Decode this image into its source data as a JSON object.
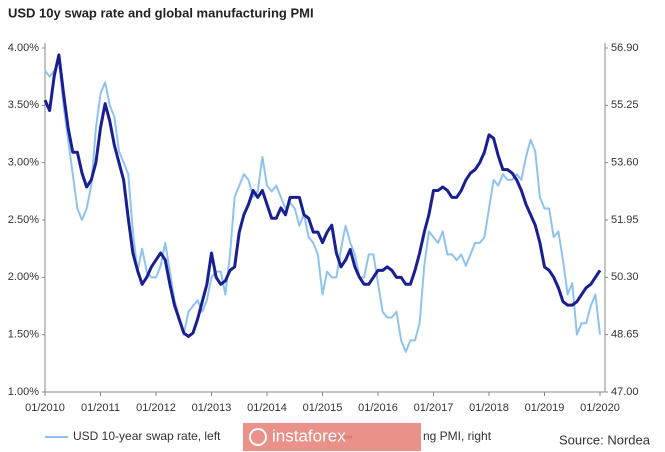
{
  "chart_data": {
    "type": "line",
    "title": "USD 10y swap rate and global manufacturing PMI",
    "source": "Source: Nordea",
    "watermark": "instaforex",
    "x": [
      "2010-01",
      "2010-02",
      "2010-03",
      "2010-04",
      "2010-05",
      "2010-06",
      "2010-07",
      "2010-08",
      "2010-09",
      "2010-10",
      "2010-11",
      "2010-12",
      "2011-01",
      "2011-02",
      "2011-03",
      "2011-04",
      "2011-05",
      "2011-06",
      "2011-07",
      "2011-08",
      "2011-09",
      "2011-10",
      "2011-11",
      "2011-12",
      "2012-01",
      "2012-02",
      "2012-03",
      "2012-04",
      "2012-05",
      "2012-06",
      "2012-07",
      "2012-08",
      "2012-09",
      "2012-10",
      "2012-11",
      "2012-12",
      "2013-01",
      "2013-02",
      "2013-03",
      "2013-04",
      "2013-05",
      "2013-06",
      "2013-07",
      "2013-08",
      "2013-09",
      "2013-10",
      "2013-11",
      "2013-12",
      "2014-01",
      "2014-02",
      "2014-03",
      "2014-04",
      "2014-05",
      "2014-06",
      "2014-07",
      "2014-08",
      "2014-09",
      "2014-10",
      "2014-11",
      "2014-12",
      "2015-01",
      "2015-02",
      "2015-03",
      "2015-04",
      "2015-05",
      "2015-06",
      "2015-07",
      "2015-08",
      "2015-09",
      "2015-10",
      "2015-11",
      "2015-12",
      "2016-01",
      "2016-02",
      "2016-03",
      "2016-04",
      "2016-05",
      "2016-06",
      "2016-07",
      "2016-08",
      "2016-09",
      "2016-10",
      "2016-11",
      "2016-12",
      "2017-01",
      "2017-02",
      "2017-03",
      "2017-04",
      "2017-05",
      "2017-06",
      "2017-07",
      "2017-08",
      "2017-09",
      "2017-10",
      "2017-11",
      "2017-12",
      "2018-01",
      "2018-02",
      "2018-03",
      "2018-04",
      "2018-05",
      "2018-06",
      "2018-07",
      "2018-08",
      "2018-09",
      "2018-10",
      "2018-11",
      "2018-12",
      "2019-01",
      "2019-02",
      "2019-03",
      "2019-04",
      "2019-05",
      "2019-06",
      "2019-07",
      "2019-08",
      "2019-09",
      "2019-10",
      "2019-11",
      "2019-12",
      "2020-01"
    ],
    "series": [
      {
        "name": "USD 10-year swap rate, left",
        "color": "#8fc3ee",
        "axis": "y",
        "values": [
          3.8,
          3.75,
          3.8,
          3.9,
          3.5,
          3.2,
          2.9,
          2.6,
          2.5,
          2.6,
          2.8,
          3.3,
          3.6,
          3.7,
          3.5,
          3.4,
          3.1,
          3.0,
          2.9,
          2.4,
          2.05,
          2.25,
          2.05,
          2.0,
          2.0,
          2.1,
          2.3,
          2.05,
          1.8,
          1.65,
          1.5,
          1.7,
          1.75,
          1.8,
          1.7,
          1.8,
          2.0,
          2.05,
          2.05,
          1.85,
          2.2,
          2.7,
          2.8,
          2.9,
          2.85,
          2.7,
          2.75,
          3.05,
          2.8,
          2.75,
          2.8,
          2.7,
          2.6,
          2.65,
          2.6,
          2.45,
          2.55,
          2.35,
          2.3,
          2.2,
          1.85,
          2.05,
          2.0,
          2.0,
          2.25,
          2.45,
          2.3,
          2.2,
          2.0,
          2.0,
          2.2,
          2.2,
          1.95,
          1.7,
          1.65,
          1.65,
          1.7,
          1.45,
          1.35,
          1.45,
          1.45,
          1.6,
          2.1,
          2.4,
          2.35,
          2.3,
          2.4,
          2.2,
          2.2,
          2.15,
          2.2,
          2.1,
          2.2,
          2.3,
          2.3,
          2.35,
          2.6,
          2.85,
          2.8,
          2.9,
          2.85,
          2.85,
          2.9,
          2.85,
          3.05,
          3.2,
          3.1,
          2.7,
          2.6,
          2.6,
          2.35,
          2.4,
          2.15,
          1.85,
          1.95,
          1.5,
          1.6,
          1.6,
          1.75,
          1.85,
          1.5
        ]
      },
      {
        "name": "ng PMI, right",
        "color": "#1a1f8f",
        "axis": "y2",
        "values": [
          55.4,
          55.1,
          56.1,
          56.7,
          55.6,
          54.6,
          53.9,
          53.9,
          53.3,
          52.9,
          53.1,
          53.6,
          54.6,
          55.3,
          54.8,
          54.1,
          53.6,
          53.1,
          52.0,
          51.0,
          50.5,
          50.1,
          50.3,
          50.6,
          50.8,
          51.0,
          50.8,
          50.1,
          49.5,
          49.1,
          48.7,
          48.6,
          48.7,
          49.1,
          49.6,
          50.1,
          51.0,
          50.3,
          50.1,
          50.2,
          50.5,
          50.6,
          51.6,
          52.1,
          52.4,
          52.8,
          52.6,
          52.8,
          52.4,
          52.0,
          52.0,
          52.3,
          52.1,
          52.6,
          52.6,
          52.6,
          52.1,
          52.0,
          51.6,
          51.6,
          51.3,
          51.6,
          51.8,
          51.0,
          50.6,
          50.8,
          51.1,
          50.6,
          50.3,
          50.1,
          50.1,
          50.3,
          50.5,
          50.5,
          50.6,
          50.5,
          50.3,
          50.3,
          50.1,
          50.1,
          50.5,
          51.0,
          51.6,
          52.1,
          52.8,
          52.8,
          52.9,
          52.8,
          52.6,
          52.6,
          52.8,
          53.1,
          53.3,
          53.4,
          53.6,
          53.9,
          54.4,
          54.3,
          53.8,
          53.4,
          53.4,
          53.3,
          53.1,
          52.8,
          52.4,
          52.1,
          51.8,
          51.3,
          50.6,
          50.5,
          50.3,
          50.0,
          49.6,
          49.5,
          49.5,
          49.6,
          49.8,
          50.0,
          50.1,
          50.3,
          50.5
        ]
      }
    ],
    "xlim": [
      "2010-01",
      "2020-01"
    ],
    "xticks": [
      {
        "value": "2010-01",
        "label": "01/2010"
      },
      {
        "value": "2011-01",
        "label": "01/2011"
      },
      {
        "value": "2012-01",
        "label": "01/2012"
      },
      {
        "value": "2013-01",
        "label": "01/2013"
      },
      {
        "value": "2014-01",
        "label": "01/2014"
      },
      {
        "value": "2015-01",
        "label": "01/2015"
      },
      {
        "value": "2016-01",
        "label": "01/2016"
      },
      {
        "value": "2017-01",
        "label": "01/2017"
      },
      {
        "value": "2018-01",
        "label": "01/2018"
      },
      {
        "value": "2019-01",
        "label": "01/2019"
      },
      {
        "value": "2020-01",
        "label": "01/2020"
      }
    ],
    "ylim": [
      1,
      4
    ],
    "yticks": [
      {
        "value": 1,
        "label": "1.00%"
      },
      {
        "value": 1.5,
        "label": "1.50%"
      },
      {
        "value": 2,
        "label": "2.00%"
      },
      {
        "value": 2.5,
        "label": "2.50%"
      },
      {
        "value": 3,
        "label": "3.00%"
      },
      {
        "value": 3.5,
        "label": "3.50%"
      },
      {
        "value": 4,
        "label": "4.00%"
      }
    ],
    "y2lim": [
      47,
      56.9
    ],
    "y2ticks": [
      {
        "value": 47,
        "label": "47.00"
      },
      {
        "value": 48.65,
        "label": "48.65"
      },
      {
        "value": 50.3,
        "label": "50.30"
      },
      {
        "value": 51.95,
        "label": "51.95"
      },
      {
        "value": 53.6,
        "label": "53.60"
      },
      {
        "value": 55.25,
        "label": "55.25"
      },
      {
        "value": 56.9,
        "label": "56.90"
      }
    ],
    "grid": false
  }
}
